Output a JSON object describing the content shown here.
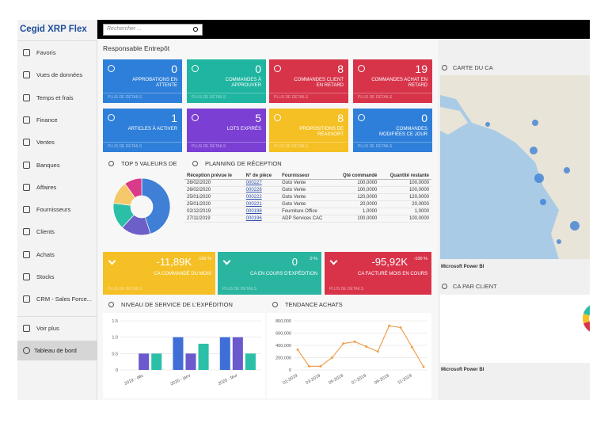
{
  "app": {
    "title": "Cegid XRP Flex",
    "search_placeholder": "Rechercher ..."
  },
  "sidebar": {
    "items": [
      "Favoris",
      "Vues de données",
      "Temps et frais",
      "Finance",
      "Ventes",
      "Banques",
      "Affaires",
      "Fournisseurs",
      "Clients",
      "Achats",
      "Stocks",
      "CRM - Sales Force..."
    ],
    "more": "Voir plus",
    "active": "Tableau de bord"
  },
  "page": {
    "title": "Responsable Entrepôt"
  },
  "tiles": [
    {
      "label": "APPROBATIONS EN ATTENTE",
      "count": 0,
      "link": "PLUS DE DÉTAILS",
      "color": "#2e7fd9"
    },
    {
      "label": "COMMANDES À APPROUVER",
      "count": 0,
      "link": "PLUS DE DÉTAILS",
      "color": "#1fb5a0"
    },
    {
      "label": "COMMANDES CLIENT EN RETARD",
      "count": 8,
      "link": "PLUS DE DÉTAILS",
      "color": "#d7344a"
    },
    {
      "label": "COMMANDES ACHAT EN RETARD",
      "count": 19,
      "link": "PLUS DE DÉTAILS",
      "color": "#d7344a"
    },
    {
      "label": "ARTICLES À ACTIVER",
      "count": 1,
      "link": "PLUS DE DÉTAILS",
      "color": "#2e7fd9"
    },
    {
      "label": "LOTS EXPIRÉS",
      "count": 5,
      "link": "PLUS DE DÉTAILS",
      "color": "#7b3fd4"
    },
    {
      "label": "PROPOSITIONS DE RÉASSORT",
      "count": 8,
      "link": "PLUS DE DÉTAILS",
      "color": "#f5c024"
    },
    {
      "label": "COMMANDES MODIFIÉES CE JOUR",
      "count": 0,
      "link": "PLUS DE DÉTAILS",
      "color": "#2e7fd9"
    }
  ],
  "kpis": [
    {
      "value": "-11,89K",
      "change": "-100 %",
      "label": "CA COMMANDÉ DU MOIS",
      "link": "PLUS DE DÉTAILS",
      "color": "#f4c025"
    },
    {
      "value": "0",
      "change": "0 %",
      "label": "CA EN COURS D'EXPÉDITION",
      "link": "PLUS DE DÉTAILS",
      "color": "#2ab5a0"
    },
    {
      "value": "-95,92K",
      "change": "-100 %",
      "label": "CA FACTURÉ MOIS EN COURS",
      "link": "PLUS DE DÉTAILS",
      "color": "#d9334a"
    }
  ],
  "planning": {
    "title": "PLANNING DE RÉCEPTION",
    "columns": [
      "Réception prévue le",
      "N° de pièce",
      "Fournisseur",
      "Qté commandé",
      "Quantité restante"
    ],
    "rows": [
      [
        "26/02/2020",
        "000227",
        "Goto Vente",
        "100,0000",
        "100,0000"
      ],
      [
        "26/02/2020",
        "000226",
        "Goto Vente",
        "100,0000",
        "100,0000"
      ],
      [
        "25/01/2020",
        "000222",
        "Goto Vente",
        "120,0000",
        "120,0000"
      ],
      [
        "25/01/2020",
        "000221",
        "Goto Vente",
        "20,0000",
        "20,0000"
      ],
      [
        "02/12/2019",
        "000198",
        "Fourniture Office",
        "1,0000",
        "1,0000"
      ],
      [
        "27/11/2019",
        "000196",
        "ADP Services CAC",
        "100,0000",
        "100,0000"
      ]
    ]
  },
  "map": {
    "title": "CARTE DU CA",
    "footer": "Microsoft Power BI"
  },
  "ca_client": {
    "title": "CA PAR CLIENT",
    "footer": "Microsoft Power BI"
  },
  "chart_data": [
    {
      "type": "pie",
      "title": "TOP 5 VALEURS DE",
      "values": [
        45,
        17,
        15,
        13,
        10
      ],
      "colors": [
        "#3f7fd6",
        "#6c5fc7",
        "#2bbfa8",
        "#f5c86a",
        "#d93a8a"
      ]
    },
    {
      "type": "bar",
      "title": "NIVEAU DE SERVICE DE L'EXPÉDITION",
      "categories": [
        "2019 - déc",
        "2020 - janv",
        "2020 - févr"
      ],
      "series": [
        {
          "color": "#3f6fd6",
          "values": [
            null,
            1,
            1
          ]
        },
        {
          "color": "#6a5acd",
          "values": [
            0.5,
            0.5,
            1
          ]
        },
        {
          "color": "#2bbfa8",
          "values": [
            0.5,
            0.8,
            0.5
          ]
        }
      ],
      "ylim": [
        0,
        1.5
      ],
      "yticks": [
        0,
        0.5,
        {
          "value": 1,
          "label": "1.0"
        },
        1.5
      ],
      "grid": true
    },
    {
      "type": "line",
      "title": "TENDANCE ACHATS",
      "categories": [
        "01-2019",
        null,
        "03-2019",
        null,
        "05-2019",
        null,
        "07-2019",
        null,
        "09-2019",
        null,
        "11-2019",
        null
      ],
      "values": [
        330000,
        60000,
        60000,
        200000,
        430000,
        460000,
        380000,
        300000,
        720000,
        690000,
        370000,
        50000
      ],
      "color": "#f0a050",
      "ylim": [
        0,
        800000
      ],
      "yticks": [
        0,
        {
          "value": 200000,
          "label": "200,000"
        },
        {
          "value": 400000,
          "label": "400,000"
        },
        {
          "value": 600000,
          "label": "600,000"
        },
        {
          "value": 800000,
          "label": "800,000"
        }
      ],
      "grid": true
    }
  ]
}
